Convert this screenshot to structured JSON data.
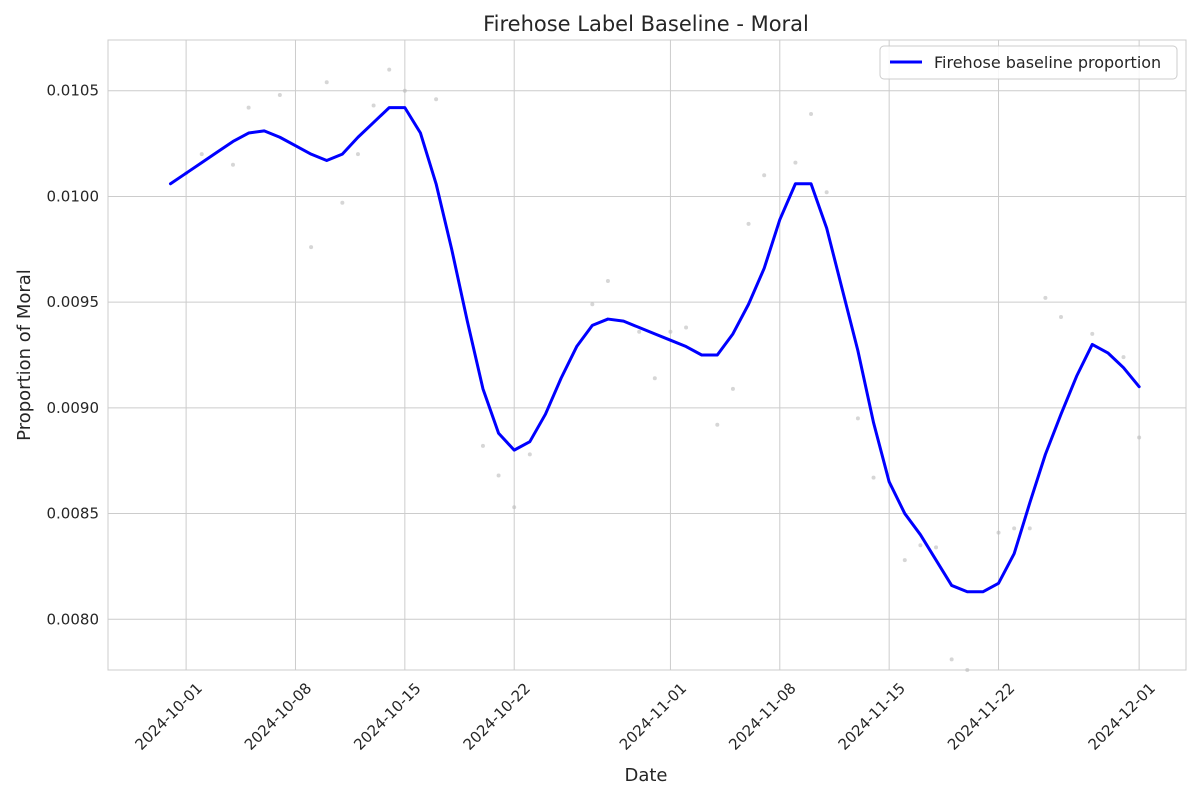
{
  "chart_data": {
    "type": "line",
    "title": "Firehose Label Baseline - Moral",
    "xlabel": "Date",
    "ylabel": "Proportion of Moral",
    "x_is_date": true,
    "xlim": [
      "2024-09-26",
      "2024-12-04"
    ],
    "ylim": [
      0.00776,
      0.01074
    ],
    "xticks": [
      "2024-10-01",
      "2024-10-08",
      "2024-10-15",
      "2024-10-22",
      "2024-11-01",
      "2024-11-08",
      "2024-11-15",
      "2024-11-22",
      "2024-12-01"
    ],
    "yticks": [
      0.008,
      0.0085,
      0.009,
      0.0095,
      0.01,
      0.0105
    ],
    "ytick_labels": [
      "0.0080",
      "0.0085",
      "0.0090",
      "0.0095",
      "0.0100",
      "0.0105"
    ],
    "grid": true,
    "legend_position": "top-right",
    "series": [
      {
        "name": "Firehose baseline proportion",
        "color": "#0000ff",
        "x": [
          "2024-09-30",
          "2024-10-01",
          "2024-10-02",
          "2024-10-03",
          "2024-10-04",
          "2024-10-05",
          "2024-10-06",
          "2024-10-07",
          "2024-10-08",
          "2024-10-09",
          "2024-10-10",
          "2024-10-11",
          "2024-10-12",
          "2024-10-13",
          "2024-10-14",
          "2024-10-15",
          "2024-10-16",
          "2024-10-17",
          "2024-10-18",
          "2024-10-19",
          "2024-10-20",
          "2024-10-21",
          "2024-10-22",
          "2024-10-23",
          "2024-10-24",
          "2024-10-25",
          "2024-10-26",
          "2024-10-27",
          "2024-10-28",
          "2024-10-29",
          "2024-10-30",
          "2024-10-31",
          "2024-11-01",
          "2024-11-02",
          "2024-11-03",
          "2024-11-04",
          "2024-11-05",
          "2024-11-06",
          "2024-11-07",
          "2024-11-08",
          "2024-11-09",
          "2024-11-10",
          "2024-11-11",
          "2024-11-12",
          "2024-11-13",
          "2024-11-14",
          "2024-11-15",
          "2024-11-16",
          "2024-11-17",
          "2024-11-18",
          "2024-11-19",
          "2024-11-20",
          "2024-11-21",
          "2024-11-22",
          "2024-11-23",
          "2024-11-24",
          "2024-11-25",
          "2024-11-26",
          "2024-11-27",
          "2024-11-28",
          "2024-11-29",
          "2024-11-30",
          "2024-12-01"
        ],
        "y": [
          0.01006,
          0.01011,
          0.01016,
          0.01021,
          0.01026,
          0.0103,
          0.01031,
          0.01028,
          0.01024,
          0.0102,
          0.01017,
          0.0102,
          0.01028,
          0.01035,
          0.01042,
          0.01042,
          0.0103,
          0.01006,
          0.00975,
          0.00941,
          0.00909,
          0.00888,
          0.0088,
          0.00884,
          0.00897,
          0.00914,
          0.00929,
          0.00939,
          0.00942,
          0.00941,
          0.00938,
          0.00935,
          0.00932,
          0.00929,
          0.00925,
          0.00925,
          0.00935,
          0.00949,
          0.00966,
          0.00989,
          0.01006,
          0.01006,
          0.00985,
          0.00956,
          0.00927,
          0.00893,
          0.00865,
          0.0085,
          0.0084,
          0.00828,
          0.00816,
          0.00813,
          0.00813,
          0.00817,
          0.00831,
          0.00855,
          0.00878,
          0.00897,
          0.00915,
          0.0093,
          0.00926,
          0.00919,
          0.0091
        ]
      }
    ],
    "scatter": {
      "color": "#bbbbbb",
      "x": [
        "2024-10-01",
        "2024-10-02",
        "2024-10-04",
        "2024-10-05",
        "2024-10-07",
        "2024-10-09",
        "2024-10-10",
        "2024-10-11",
        "2024-10-12",
        "2024-10-13",
        "2024-10-14",
        "2024-10-15",
        "2024-10-17",
        "2024-10-20",
        "2024-10-21",
        "2024-10-22",
        "2024-10-23",
        "2024-10-27",
        "2024-10-28",
        "2024-10-30",
        "2024-10-31",
        "2024-11-01",
        "2024-11-02",
        "2024-11-04",
        "2024-11-05",
        "2024-11-06",
        "2024-11-07",
        "2024-11-09",
        "2024-11-10",
        "2024-11-11",
        "2024-11-13",
        "2024-11-14",
        "2024-11-16",
        "2024-11-17",
        "2024-11-18",
        "2024-11-19",
        "2024-11-20",
        "2024-11-22",
        "2024-11-23",
        "2024-11-24",
        "2024-11-25",
        "2024-11-26",
        "2024-11-28",
        "2024-11-30",
        "2024-12-01"
      ],
      "y": [
        0.01011,
        0.0102,
        0.01015,
        0.01042,
        0.01048,
        0.00976,
        0.01054,
        0.00997,
        0.0102,
        0.01043,
        0.0106,
        0.0105,
        0.01046,
        0.00882,
        0.00868,
        0.00853,
        0.00878,
        0.00949,
        0.0096,
        0.00936,
        0.00914,
        0.00936,
        0.00938,
        0.00892,
        0.00909,
        0.00987,
        0.0101,
        0.01016,
        0.01039,
        0.01002,
        0.00895,
        0.00867,
        0.00828,
        0.00835,
        0.00834,
        0.00781,
        0.00776,
        0.00841,
        0.00843,
        0.00843,
        0.00952,
        0.00943,
        0.00935,
        0.00924,
        0.00886
      ]
    }
  }
}
